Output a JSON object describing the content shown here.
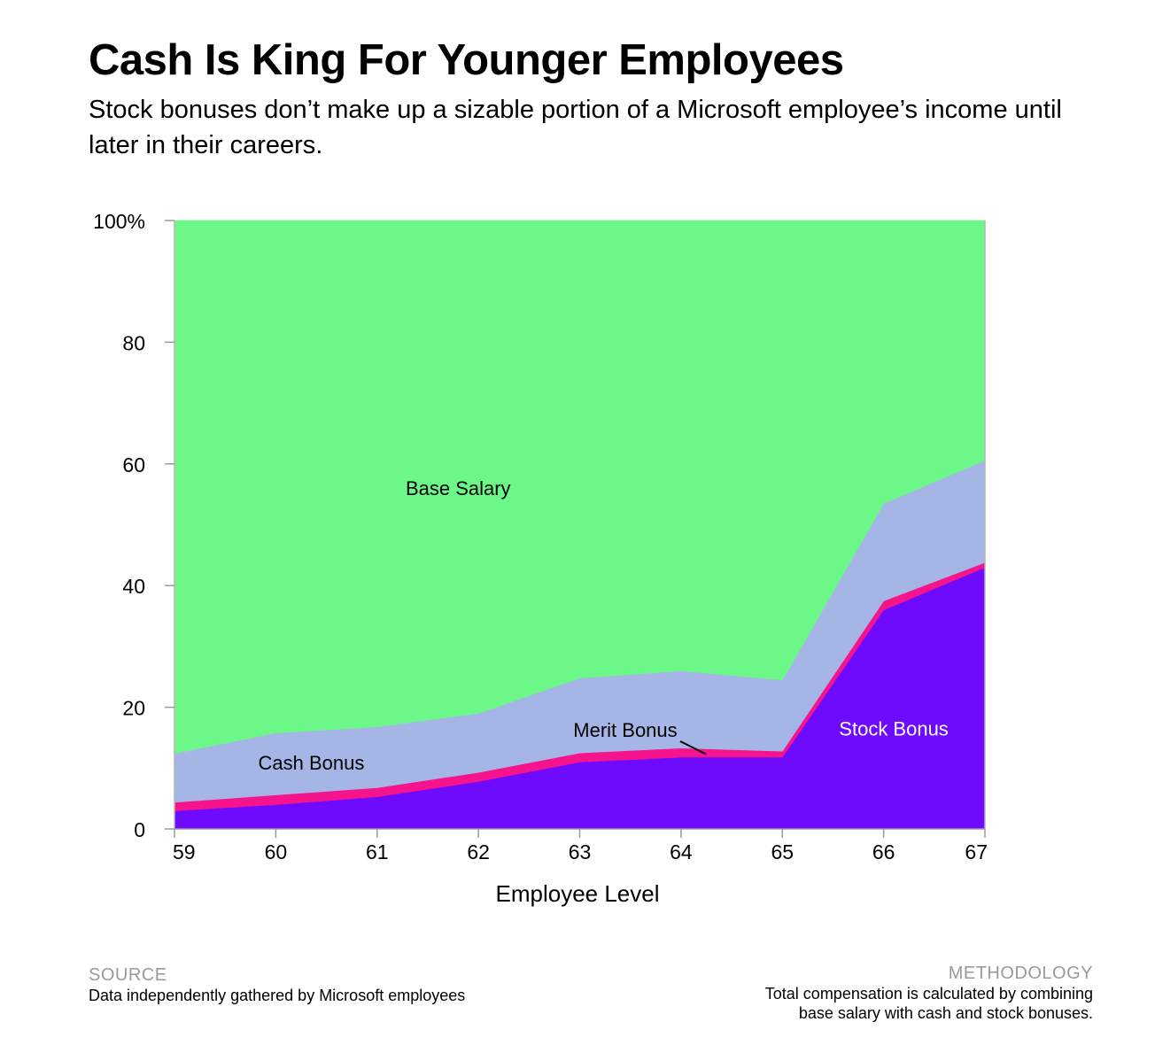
{
  "chart_data": {
    "type": "area",
    "stacked": true,
    "title": "Cash Is King For Younger Employees",
    "subtitle": "Stock bonuses don’t make up a sizable portion of a Microsoft employee’s income until later in their careers.",
    "xlabel": "Employee Level",
    "ylabel": "",
    "categories": [
      "59",
      "60",
      "61",
      "62",
      "63",
      "64",
      "65",
      "66",
      "67"
    ],
    "yticks": [
      "0",
      "20",
      "40",
      "60",
      "80",
      "100%"
    ],
    "ytick_values": [
      0,
      20,
      40,
      60,
      80,
      100
    ],
    "ylim": [
      0,
      100
    ],
    "grid": false,
    "legend": "inline labels",
    "series": [
      {
        "name": "Stock Bonus",
        "color": "#6e0bff",
        "label_color": "#ffffff",
        "values": [
          3.0,
          4.0,
          5.3,
          7.8,
          11.0,
          11.8,
          11.8,
          36.0,
          43.0
        ]
      },
      {
        "name": "Merit Bonus",
        "color": "#f5148c",
        "label_color": "#000000",
        "values": [
          1.4,
          1.6,
          1.5,
          1.5,
          1.5,
          1.5,
          1.0,
          1.5,
          0.8
        ]
      },
      {
        "name": "Cash Bonus",
        "color": "#a5b6e6",
        "label_color": "#000000",
        "values": [
          8.0,
          10.2,
          10.0,
          9.7,
          12.3,
          12.7,
          11.7,
          16.0,
          16.8
        ]
      },
      {
        "name": "Base Salary",
        "color": "#6bf888",
        "label_color": "#000000",
        "values": [
          87.6,
          84.2,
          83.2,
          81.0,
          75.2,
          74.0,
          75.5,
          46.5,
          39.4
        ]
      }
    ]
  },
  "footer": {
    "source_heading": "SOURCE",
    "source_text": "Data independently gathered by Microsoft employees",
    "methodology_heading": "METHODOLOGY",
    "methodology_line1": "Total compensation is calculated by combining",
    "methodology_line2": "base salary with cash and stock bonuses."
  }
}
